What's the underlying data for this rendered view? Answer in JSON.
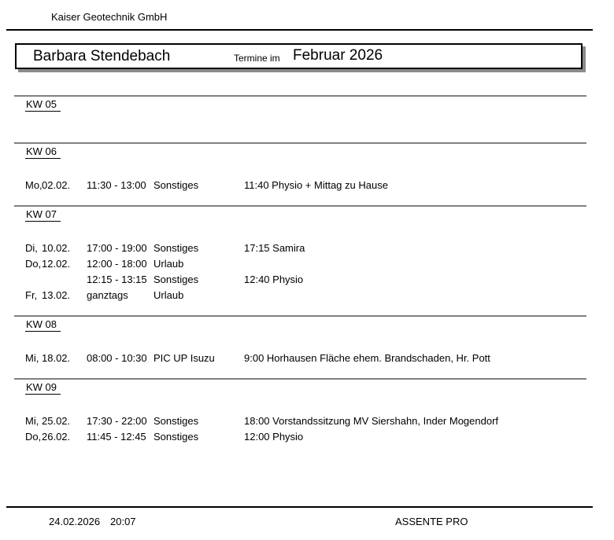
{
  "header": {
    "company": "Kaiser Geotechnik GmbH",
    "person": "Barbara Stendebach",
    "title_prefix": "Termine im",
    "title_month": "Februar 2026"
  },
  "colors": {
    "green": "#00E57C",
    "red": "#FA0000",
    "navy": "#123E6B",
    "section_line": "#808080"
  },
  "weeks": [
    {
      "label": "KW 05",
      "rows": []
    },
    {
      "label": "KW 06",
      "rows": [
        {
          "day": "Mo,",
          "date": "02.02.",
          "color": "green",
          "time": "11:30 - 13:00",
          "type": "Sonstiges",
          "desc": "11:40 Physio + Mittag zu Hause"
        }
      ]
    },
    {
      "label": "KW 07",
      "rows": [
        {
          "day": "Di,",
          "date": "10.02.",
          "color": "green",
          "time": "17:00 - 19:00",
          "type": "Sonstiges",
          "desc": "17:15 Samira"
        },
        {
          "day": "Do,",
          "date": "12.02.",
          "color": "red",
          "time": "12:00 - 18:00",
          "type": "Urlaub",
          "desc": ""
        },
        {
          "day": "",
          "date": "",
          "color": "green",
          "time": "12:15 - 13:15",
          "type": "Sonstiges",
          "desc": "12:40 Physio"
        },
        {
          "day": "Fr,",
          "date": "13.02.",
          "color": "red",
          "time": "ganztags",
          "type": "Urlaub",
          "desc": ""
        }
      ]
    },
    {
      "label": "KW 08",
      "rows": [
        {
          "day": "Mi,",
          "date": "18.02.",
          "color": "navy",
          "time": "08:00 - 10:30",
          "type": "PIC UP Isuzu",
          "desc": "9:00 Horhausen Fläche ehem. Brandschaden, Hr. Pott"
        }
      ]
    },
    {
      "label": "KW 09",
      "rows": [
        {
          "day": "Mi,",
          "date": "25.02.",
          "color": "green",
          "time": "17:30 - 22:00",
          "type": "Sonstiges",
          "desc": "18:00 Vorstandssitzung MV Siershahn, Inder Mogendorf"
        },
        {
          "day": "Do,",
          "date": "26.02.",
          "color": "green",
          "time": "11:45 - 12:45",
          "type": "Sonstiges",
          "desc": "12:00 Physio"
        }
      ]
    }
  ],
  "footer": {
    "date": "24.02.2026",
    "time": "20:07",
    "app_name": "ASSENTE PRO"
  }
}
